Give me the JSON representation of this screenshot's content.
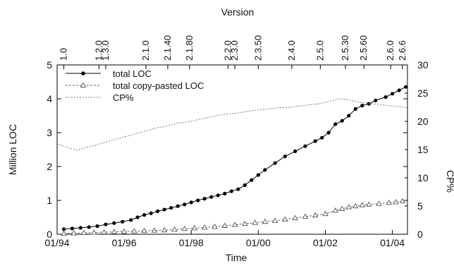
{
  "chart_data": {
    "type": "line",
    "top_axis_title": "Version",
    "xlabel": "Time",
    "ylabel": "Million LOC",
    "y2label": "CP%",
    "xlim": [
      1994.0,
      2004.45
    ],
    "ylim": [
      0,
      5
    ],
    "y2lim": [
      0,
      30
    ],
    "x_tick_labels": [
      "01/94",
      "01/96",
      "01/98",
      "01/00",
      "01/02",
      "01/04"
    ],
    "x_tick_values": [
      1994,
      1996,
      1998,
      2000,
      2002,
      2004
    ],
    "y_ticks": [
      0,
      1,
      2,
      3,
      4,
      5
    ],
    "y2_ticks": [
      0,
      5,
      10,
      15,
      20,
      25,
      30
    ],
    "grid": false,
    "legend_position": "top-left",
    "versions": [
      {
        "label": "1.0",
        "x": 1994.2
      },
      {
        "label": "1.2.0",
        "x": 1995.25
      },
      {
        "label": "1.3.0",
        "x": 1995.45
      },
      {
        "label": "2.1.0",
        "x": 1996.65
      },
      {
        "label": "2.1.40",
        "x": 1997.3
      },
      {
        "label": "2.1.80",
        "x": 1997.95
      },
      {
        "label": "2.2.0",
        "x": 1999.1
      },
      {
        "label": "2.3.0",
        "x": 1999.3
      },
      {
        "label": "2.3.50",
        "x": 2000.0
      },
      {
        "label": "2.4.0",
        "x": 2001.0
      },
      {
        "label": "2.5.0",
        "x": 2001.85
      },
      {
        "label": "2.5.30",
        "x": 2002.6
      },
      {
        "label": "2.5.60",
        "x": 2003.15
      },
      {
        "label": "2.6.0",
        "x": 2003.95
      },
      {
        "label": "2.6.6",
        "x": 2004.3
      }
    ],
    "series": [
      {
        "name": "total LOC",
        "axis": "left",
        "style": "solid-filled-circle",
        "color": "#000000",
        "x": [
          1994.2,
          1994.45,
          1994.7,
          1994.95,
          1995.2,
          1995.45,
          1995.7,
          1995.95,
          1996.2,
          1996.4,
          1996.6,
          1996.8,
          1997.0,
          1997.2,
          1997.4,
          1997.6,
          1997.8,
          1998.0,
          1998.2,
          1998.4,
          1998.6,
          1998.8,
          1999.0,
          1999.2,
          1999.4,
          1999.6,
          1999.8,
          2000.0,
          2000.2,
          2000.5,
          2000.8,
          2001.1,
          2001.4,
          2001.7,
          2001.9,
          2002.1,
          2002.3,
          2002.5,
          2002.7,
          2002.9,
          2003.1,
          2003.3,
          2003.5,
          2003.8,
          2004.0,
          2004.2,
          2004.4
        ],
        "values": [
          0.15,
          0.17,
          0.19,
          0.21,
          0.24,
          0.29,
          0.33,
          0.37,
          0.42,
          0.5,
          0.57,
          0.62,
          0.68,
          0.73,
          0.78,
          0.83,
          0.88,
          0.94,
          1.0,
          1.05,
          1.1,
          1.15,
          1.2,
          1.27,
          1.33,
          1.45,
          1.6,
          1.75,
          1.9,
          2.1,
          2.3,
          2.45,
          2.6,
          2.75,
          2.85,
          3.0,
          3.25,
          3.35,
          3.5,
          3.7,
          3.8,
          3.85,
          3.95,
          4.05,
          4.15,
          4.25,
          4.35
        ]
      },
      {
        "name": "total copy-pasted LOC",
        "axis": "left",
        "style": "dashed-open-triangle",
        "color": "#666666",
        "x": [
          1994.2,
          1994.5,
          1994.8,
          1995.1,
          1995.4,
          1995.7,
          1996.0,
          1996.3,
          1996.6,
          1996.9,
          1997.2,
          1997.5,
          1997.8,
          1998.1,
          1998.4,
          1998.7,
          1999.0,
          1999.3,
          1999.6,
          1999.9,
          2000.2,
          2000.5,
          2000.8,
          2001.1,
          2001.4,
          2001.7,
          2002.0,
          2002.3,
          2002.5,
          2002.7,
          2002.9,
          2003.1,
          2003.3,
          2003.6,
          2003.9,
          2004.1,
          2004.3
        ],
        "values": [
          0.02,
          0.03,
          0.04,
          0.05,
          0.06,
          0.07,
          0.08,
          0.09,
          0.1,
          0.11,
          0.12,
          0.14,
          0.16,
          0.18,
          0.2,
          0.22,
          0.25,
          0.28,
          0.31,
          0.34,
          0.37,
          0.4,
          0.44,
          0.48,
          0.52,
          0.56,
          0.6,
          0.7,
          0.75,
          0.8,
          0.83,
          0.86,
          0.88,
          0.9,
          0.93,
          0.95,
          0.98
        ]
      },
      {
        "name": "CP%",
        "axis": "right",
        "style": "dotted-line",
        "color": "#777777",
        "x": [
          1994.0,
          1994.3,
          1994.6,
          1994.9,
          1995.2,
          1995.5,
          1995.8,
          1996.1,
          1996.4,
          1996.7,
          1997.0,
          1997.3,
          1997.6,
          1997.9,
          1998.2,
          1998.5,
          1998.8,
          1999.1,
          1999.4,
          1999.7,
          2000.0,
          2000.3,
          2000.6,
          2000.9,
          2001.2,
          2001.5,
          2001.8,
          2002.1,
          2002.4,
          2002.7,
          2003.0,
          2003.3,
          2003.6,
          2003.9,
          2004.2,
          2004.45
        ],
        "values": [
          16.0,
          15.4,
          14.9,
          15.4,
          15.9,
          16.4,
          16.9,
          17.4,
          17.9,
          18.4,
          18.9,
          19.2,
          19.7,
          19.9,
          20.3,
          20.7,
          21.1,
          21.3,
          21.5,
          21.8,
          22.0,
          22.2,
          22.4,
          22.5,
          22.7,
          22.9,
          23.1,
          23.5,
          24.0,
          23.8,
          23.4,
          23.2,
          23.0,
          22.8,
          22.6,
          22.4
        ]
      }
    ]
  }
}
